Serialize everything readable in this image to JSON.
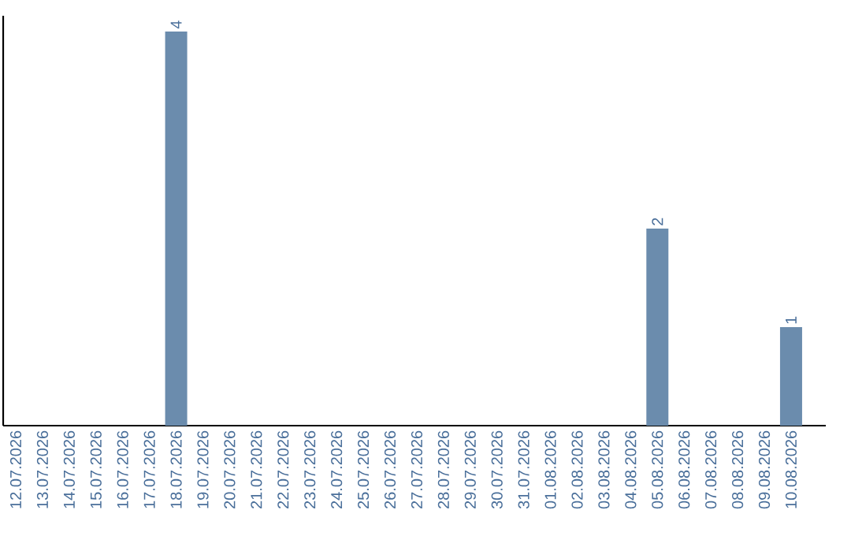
{
  "chart_data": {
    "type": "bar",
    "categories": [
      "12.07.2026",
      "13.07.2026",
      "14.07.2026",
      "15.07.2026",
      "16.07.2026",
      "17.07.2026",
      "18.07.2026",
      "19.07.2026",
      "20.07.2026",
      "21.07.2026",
      "22.07.2026",
      "23.07.2026",
      "24.07.2026",
      "25.07.2026",
      "26.07.2026",
      "27.07.2026",
      "28.07.2026",
      "29.07.2026",
      "30.07.2026",
      "31.07.2026",
      "01.08.2026",
      "02.08.2026",
      "03.08.2026",
      "04.08.2026",
      "05.08.2026",
      "06.08.2026",
      "07.08.2026",
      "08.08.2026",
      "09.08.2026",
      "10.08.2026"
    ],
    "values": [
      0,
      0,
      0,
      0,
      0,
      0,
      4,
      0,
      0,
      0,
      0,
      0,
      0,
      0,
      0,
      0,
      0,
      0,
      0,
      0,
      0,
      0,
      0,
      0,
      2,
      0,
      0,
      0,
      0,
      1
    ],
    "value_labels": [
      null,
      null,
      null,
      null,
      null,
      null,
      "4",
      null,
      null,
      null,
      null,
      null,
      null,
      null,
      null,
      null,
      null,
      null,
      null,
      null,
      null,
      null,
      null,
      null,
      "2",
      null,
      null,
      null,
      null,
      "1"
    ],
    "color": "#6b8cad",
    "ylim": [
      0,
      4.16
    ],
    "tick_labels": "x",
    "grid": false
  }
}
